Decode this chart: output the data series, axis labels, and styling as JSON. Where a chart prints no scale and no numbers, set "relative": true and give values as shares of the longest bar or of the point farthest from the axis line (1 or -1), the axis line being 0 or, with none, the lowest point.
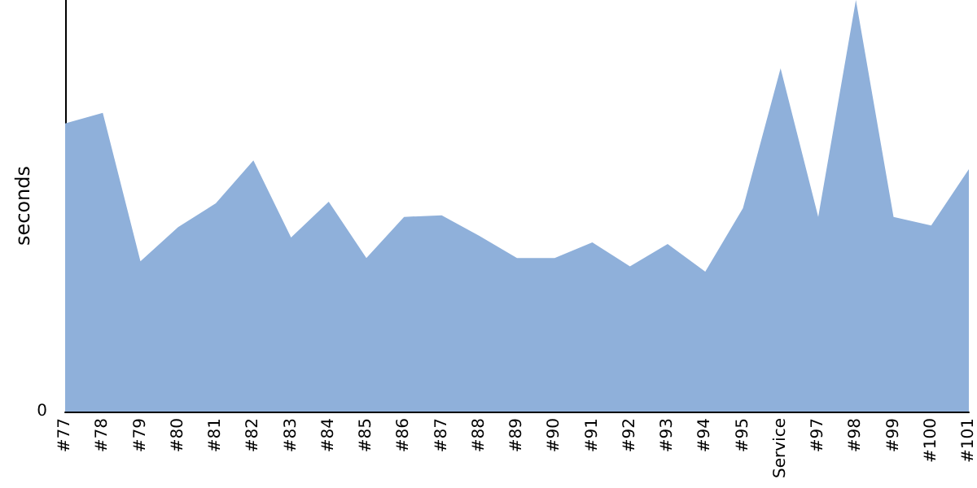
{
  "chart_data": {
    "type": "area",
    "ylabel": "seconds",
    "relative": true,
    "color": "#8fb0da",
    "categories": [
      "#77",
      "#78",
      "#79",
      "#80",
      "#81",
      "#82",
      "#83",
      "#84",
      "#85",
      "#86",
      "#87",
      "#88",
      "#89",
      "#90",
      "#91",
      "#92",
      "#93",
      "#94",
      "#95",
      "Service",
      "#97",
      "#98",
      "#99",
      "#100",
      "#101"
    ],
    "values": [
      0.7,
      0.726,
      0.365,
      0.448,
      0.506,
      0.61,
      0.423,
      0.51,
      0.373,
      0.473,
      0.477,
      0.427,
      0.373,
      0.373,
      0.411,
      0.353,
      0.407,
      0.34,
      0.494,
      0.834,
      0.473,
      1,
      0.473,
      0.452,
      0.589
    ],
    "annotations": [
      "0"
    ],
    "grid": false
  }
}
